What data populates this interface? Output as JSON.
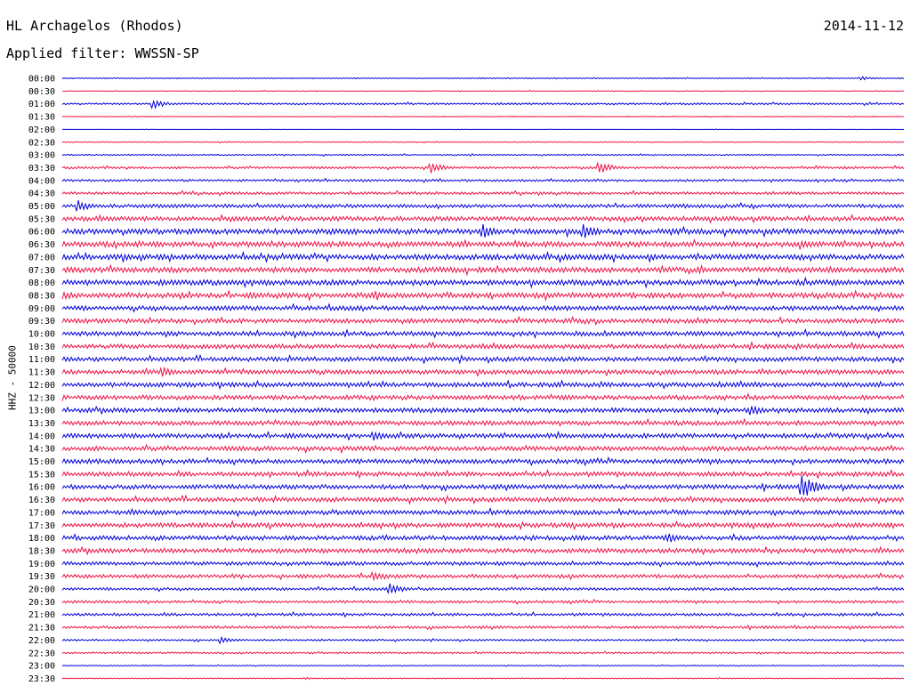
{
  "header": {
    "station": "HL Archagelos (Rhodos)",
    "filter": "Applied filter: WWSSN-SP",
    "date": "2014-11-12"
  },
  "chart_data": {
    "type": "line",
    "title": "HL Archagelos (Rhodos)",
    "subtitle": "Applied filter: WWSSN-SP",
    "ylabel": "HHZ - 50000",
    "xlabel": "",
    "date": "2014-11-12",
    "tick_labels": [
      "00:00",
      "00:30",
      "01:00",
      "01:30",
      "02:00",
      "02:30",
      "03:00",
      "03:30",
      "04:00",
      "04:30",
      "05:00",
      "05:30",
      "06:00",
      "06:30",
      "07:00",
      "07:30",
      "08:00",
      "08:30",
      "09:00",
      "09:30",
      "10:00",
      "10:30",
      "11:00",
      "11:30",
      "12:00",
      "12:30",
      "13:00",
      "13:30",
      "14:00",
      "14:30",
      "15:00",
      "15:30",
      "16:00",
      "16:30",
      "17:00",
      "17:30",
      "18:00",
      "18:30",
      "19:00",
      "19:30",
      "20:00",
      "20:30",
      "21:00",
      "21:30",
      "22:00",
      "22:30",
      "23:00",
      "23:30"
    ],
    "series_colors": [
      "#0000dd",
      "#ee1144"
    ],
    "trace_noise_levels": [
      1,
      1,
      2,
      1,
      0.5,
      1,
      1.5,
      2.5,
      2.5,
      3,
      4,
      5,
      6,
      6,
      6,
      6,
      6,
      6,
      5,
      5,
      5,
      5,
      5,
      5,
      5,
      5,
      5,
      5,
      5,
      5,
      5,
      5,
      5,
      5,
      5,
      5,
      5,
      5,
      4,
      4,
      3,
      3,
      3,
      3,
      2,
      2,
      1,
      1
    ],
    "events": [
      {
        "trace": "00:00",
        "x_fraction": 0.95,
        "amplitude": 4
      },
      {
        "trace": "01:00",
        "x_fraction": 0.11,
        "amplitude": 10
      },
      {
        "trace": "03:30",
        "x_fraction": 0.44,
        "amplitude": 12
      },
      {
        "trace": "03:30",
        "x_fraction": 0.64,
        "amplitude": 14
      },
      {
        "trace": "05:00",
        "x_fraction": 0.02,
        "amplitude": 14
      },
      {
        "trace": "06:00",
        "x_fraction": 0.5,
        "amplitude": 18
      },
      {
        "trace": "06:00",
        "x_fraction": 0.62,
        "amplitude": 20
      },
      {
        "trace": "06:30",
        "x_fraction": 0.88,
        "amplitude": 12
      },
      {
        "trace": "08:30",
        "x_fraction": 0.0,
        "amplitude": 12
      },
      {
        "trace": "11:30",
        "x_fraction": 0.12,
        "amplitude": 12
      },
      {
        "trace": "13:00",
        "x_fraction": 0.82,
        "amplitude": 14
      },
      {
        "trace": "14:00",
        "x_fraction": 0.37,
        "amplitude": 12
      },
      {
        "trace": "16:00",
        "x_fraction": 0.88,
        "amplitude": 30
      },
      {
        "trace": "18:00",
        "x_fraction": 0.72,
        "amplitude": 12
      },
      {
        "trace": "19:30",
        "x_fraction": 0.37,
        "amplitude": 14
      },
      {
        "trace": "20:00",
        "x_fraction": 0.39,
        "amplitude": 14
      },
      {
        "trace": "22:00",
        "x_fraction": 0.19,
        "amplitude": 8
      },
      {
        "trace": "23:30",
        "x_fraction": 0.29,
        "amplitude": 3
      }
    ]
  }
}
